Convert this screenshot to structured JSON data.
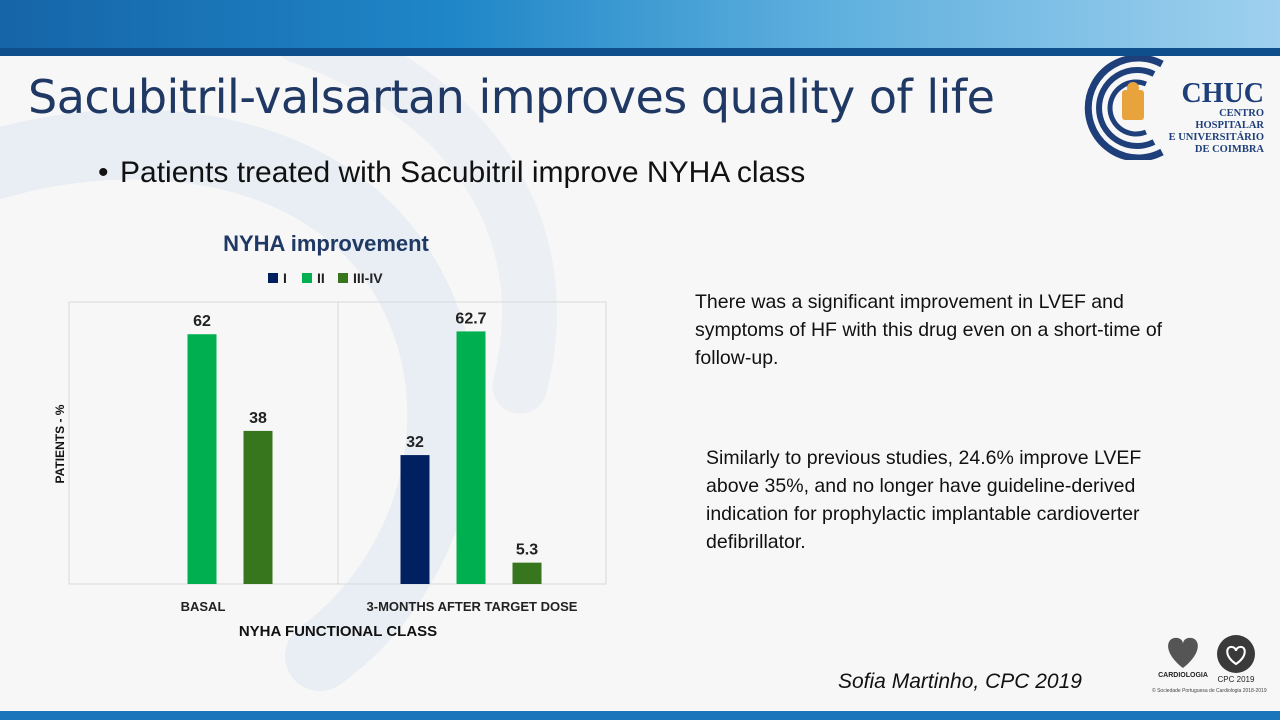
{
  "slide": {
    "title": "Sacubitril-valsartan improves quality of life",
    "bullet": "Patients treated with Sacubitril improve NYHA class",
    "text_block_1": "There was a significant improvement in LVEF and symptoms of HF with this drug even on a short-time of follow-up.",
    "text_block_2": "Similarly to previous studies, 24.6% improve LVEF above 35%, and no longer have guideline-derived indication for prophylactic implantable cardioverter defibrillator.",
    "citation": "Sofia Martinho, CPC 2019"
  },
  "logo": {
    "name": "CHUC",
    "line1": "CENTRO HOSPITALAR",
    "line2": "E UNIVERSITÁRIO",
    "line3": "DE COIMBRA"
  },
  "footer_logos": {
    "spc_name": "CARDIOLOGIA",
    "cpc_label": "CPC 2019",
    "spc_footnote": "© Sociedade Portuguesa de Cardiologia 2018-2019"
  },
  "colors": {
    "title": "#1f3864",
    "series_I": "#002060",
    "series_II": "#00b050",
    "series_III_IV": "#38761d",
    "band": "#1b75bb"
  },
  "chart_data": {
    "type": "bar",
    "title": "NYHA improvement",
    "xlabel": "NYHA FUNCTIONAL CLASS",
    "ylabel": "PATIENTS - %",
    "categories": [
      "BASAL",
      "3-MONTHS AFTER TARGET DOSE"
    ],
    "series": [
      {
        "name": "I",
        "values": [
          0,
          32
        ],
        "labels": [
          "",
          "32"
        ],
        "color": "#002060"
      },
      {
        "name": "II",
        "values": [
          62,
          62.7
        ],
        "labels": [
          "62",
          "62.7"
        ],
        "color": "#00b050"
      },
      {
        "name": "III-IV",
        "values": [
          38,
          5.3
        ],
        "labels": [
          "38",
          "5.3"
        ],
        "color": "#38761d"
      }
    ],
    "ylim": [
      0,
      70
    ],
    "grid": false,
    "legend_position": "top"
  }
}
